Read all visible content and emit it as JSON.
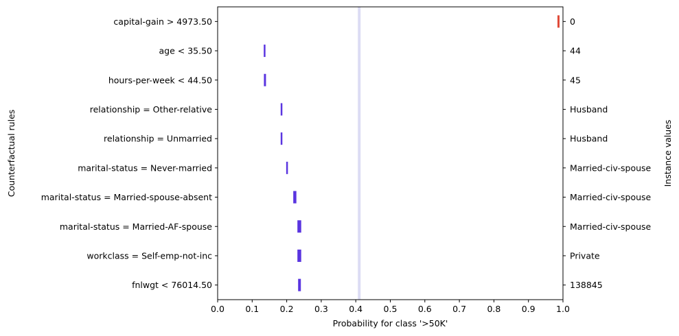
{
  "chart_data": {
    "type": "interval",
    "xlabel": "Probability for class '>50K'",
    "ylabel_left": "Counterfactual rules",
    "ylabel_right": "Instance values",
    "xlim": [
      0.0,
      1.0
    ],
    "xticks": [
      "0.0",
      "0.1",
      "0.2",
      "0.3",
      "0.4",
      "0.5",
      "0.6",
      "0.7",
      "0.8",
      "0.9",
      "1.0"
    ],
    "reference_line": {
      "x": 0.41,
      "color": "#dcdcf4"
    },
    "colors": {
      "counterfactual": "#5a35e0",
      "instance": "#e04a38"
    },
    "rows": [
      {
        "rule": "capital-gain > 4973.50",
        "instance_value": "0",
        "low": 0.984,
        "high": 0.99,
        "kind": "instance"
      },
      {
        "rule": "age < 35.50",
        "instance_value": "44",
        "low": 0.134,
        "high": 0.138,
        "kind": "counterfactual"
      },
      {
        "rule": "hours-per-week < 44.50",
        "instance_value": "45",
        "low": 0.134,
        "high": 0.14,
        "kind": "counterfactual"
      },
      {
        "rule": "relationship = Other-relative",
        "instance_value": "Husband",
        "low": 0.183,
        "high": 0.187,
        "kind": "counterfactual"
      },
      {
        "rule": "relationship = Unmarried",
        "instance_value": "Husband",
        "low": 0.183,
        "high": 0.187,
        "kind": "counterfactual"
      },
      {
        "rule": "marital-status = Never-married",
        "instance_value": "Married-civ-spouse",
        "low": 0.199,
        "high": 0.203,
        "kind": "counterfactual"
      },
      {
        "rule": "marital-status = Married-spouse-absent",
        "instance_value": "Married-civ-spouse",
        "low": 0.219,
        "high": 0.228,
        "kind": "counterfactual"
      },
      {
        "rule": "marital-status = Married-AF-spouse",
        "instance_value": "Married-civ-spouse",
        "low": 0.231,
        "high": 0.242,
        "kind": "counterfactual"
      },
      {
        "rule": "workclass = Self-emp-not-inc",
        "instance_value": "Private",
        "low": 0.231,
        "high": 0.242,
        "kind": "counterfactual"
      },
      {
        "rule": "fnlwgt < 76014.50",
        "instance_value": "138845",
        "low": 0.233,
        "high": 0.241,
        "kind": "counterfactual"
      }
    ]
  }
}
